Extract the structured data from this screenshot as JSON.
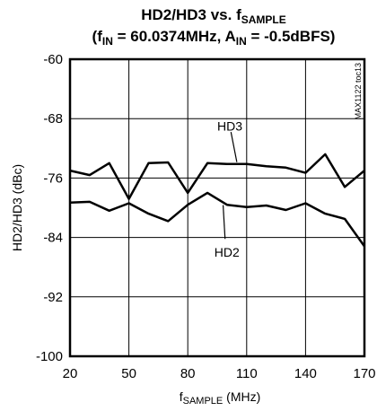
{
  "chart_data": {
    "type": "line",
    "title_line1_prefix": "HD2/HD3 vs. f",
    "title_line1_sub": "SAMPLE",
    "title_line2_a": "(f",
    "title_line2_sub1": "IN",
    "title_line2_b": " = 60.0374MHz, A",
    "title_line2_sub2": "IN",
    "title_line2_c": " = -0.5dBFS)",
    "xlabel_prefix": "f",
    "xlabel_sub": "SAMPLE",
    "xlabel_suffix": " (MHz)",
    "ylabel": "HD2/HD3 (dBc)",
    "xlim": [
      20,
      170
    ],
    "ylim": [
      -100,
      -60
    ],
    "x_ticks": [
      20,
      50,
      80,
      110,
      140,
      170
    ],
    "y_ticks": [
      -60,
      -68,
      -76,
      -84,
      -92,
      -100
    ],
    "grid": true,
    "watermark": "MAX1122 toc13",
    "series": [
      {
        "name": "HD3",
        "x": [
          20,
          30,
          40,
          50,
          60,
          70,
          80,
          90,
          100,
          110,
          120,
          130,
          140,
          150,
          160,
          170
        ],
        "y": [
          -75.0,
          -75.6,
          -74.0,
          -78.8,
          -74.0,
          -73.9,
          -78.0,
          -74.0,
          -74.1,
          -74.1,
          -74.4,
          -74.6,
          -75.3,
          -72.8,
          -77.2,
          -75.0
        ]
      },
      {
        "name": "HD2",
        "x": [
          20,
          30,
          40,
          50,
          60,
          70,
          80,
          90,
          100,
          110,
          120,
          130,
          140,
          150,
          160,
          170
        ],
        "y": [
          -79.3,
          -79.2,
          -80.4,
          -79.4,
          -80.8,
          -81.8,
          -79.6,
          -78.0,
          -79.6,
          -79.9,
          -79.7,
          -80.3,
          -79.4,
          -80.8,
          -81.5,
          -85.2
        ]
      }
    ],
    "annotations": [
      {
        "text": "HD3",
        "series": "HD3"
      },
      {
        "text": "HD2",
        "series": "HD2"
      }
    ]
  }
}
